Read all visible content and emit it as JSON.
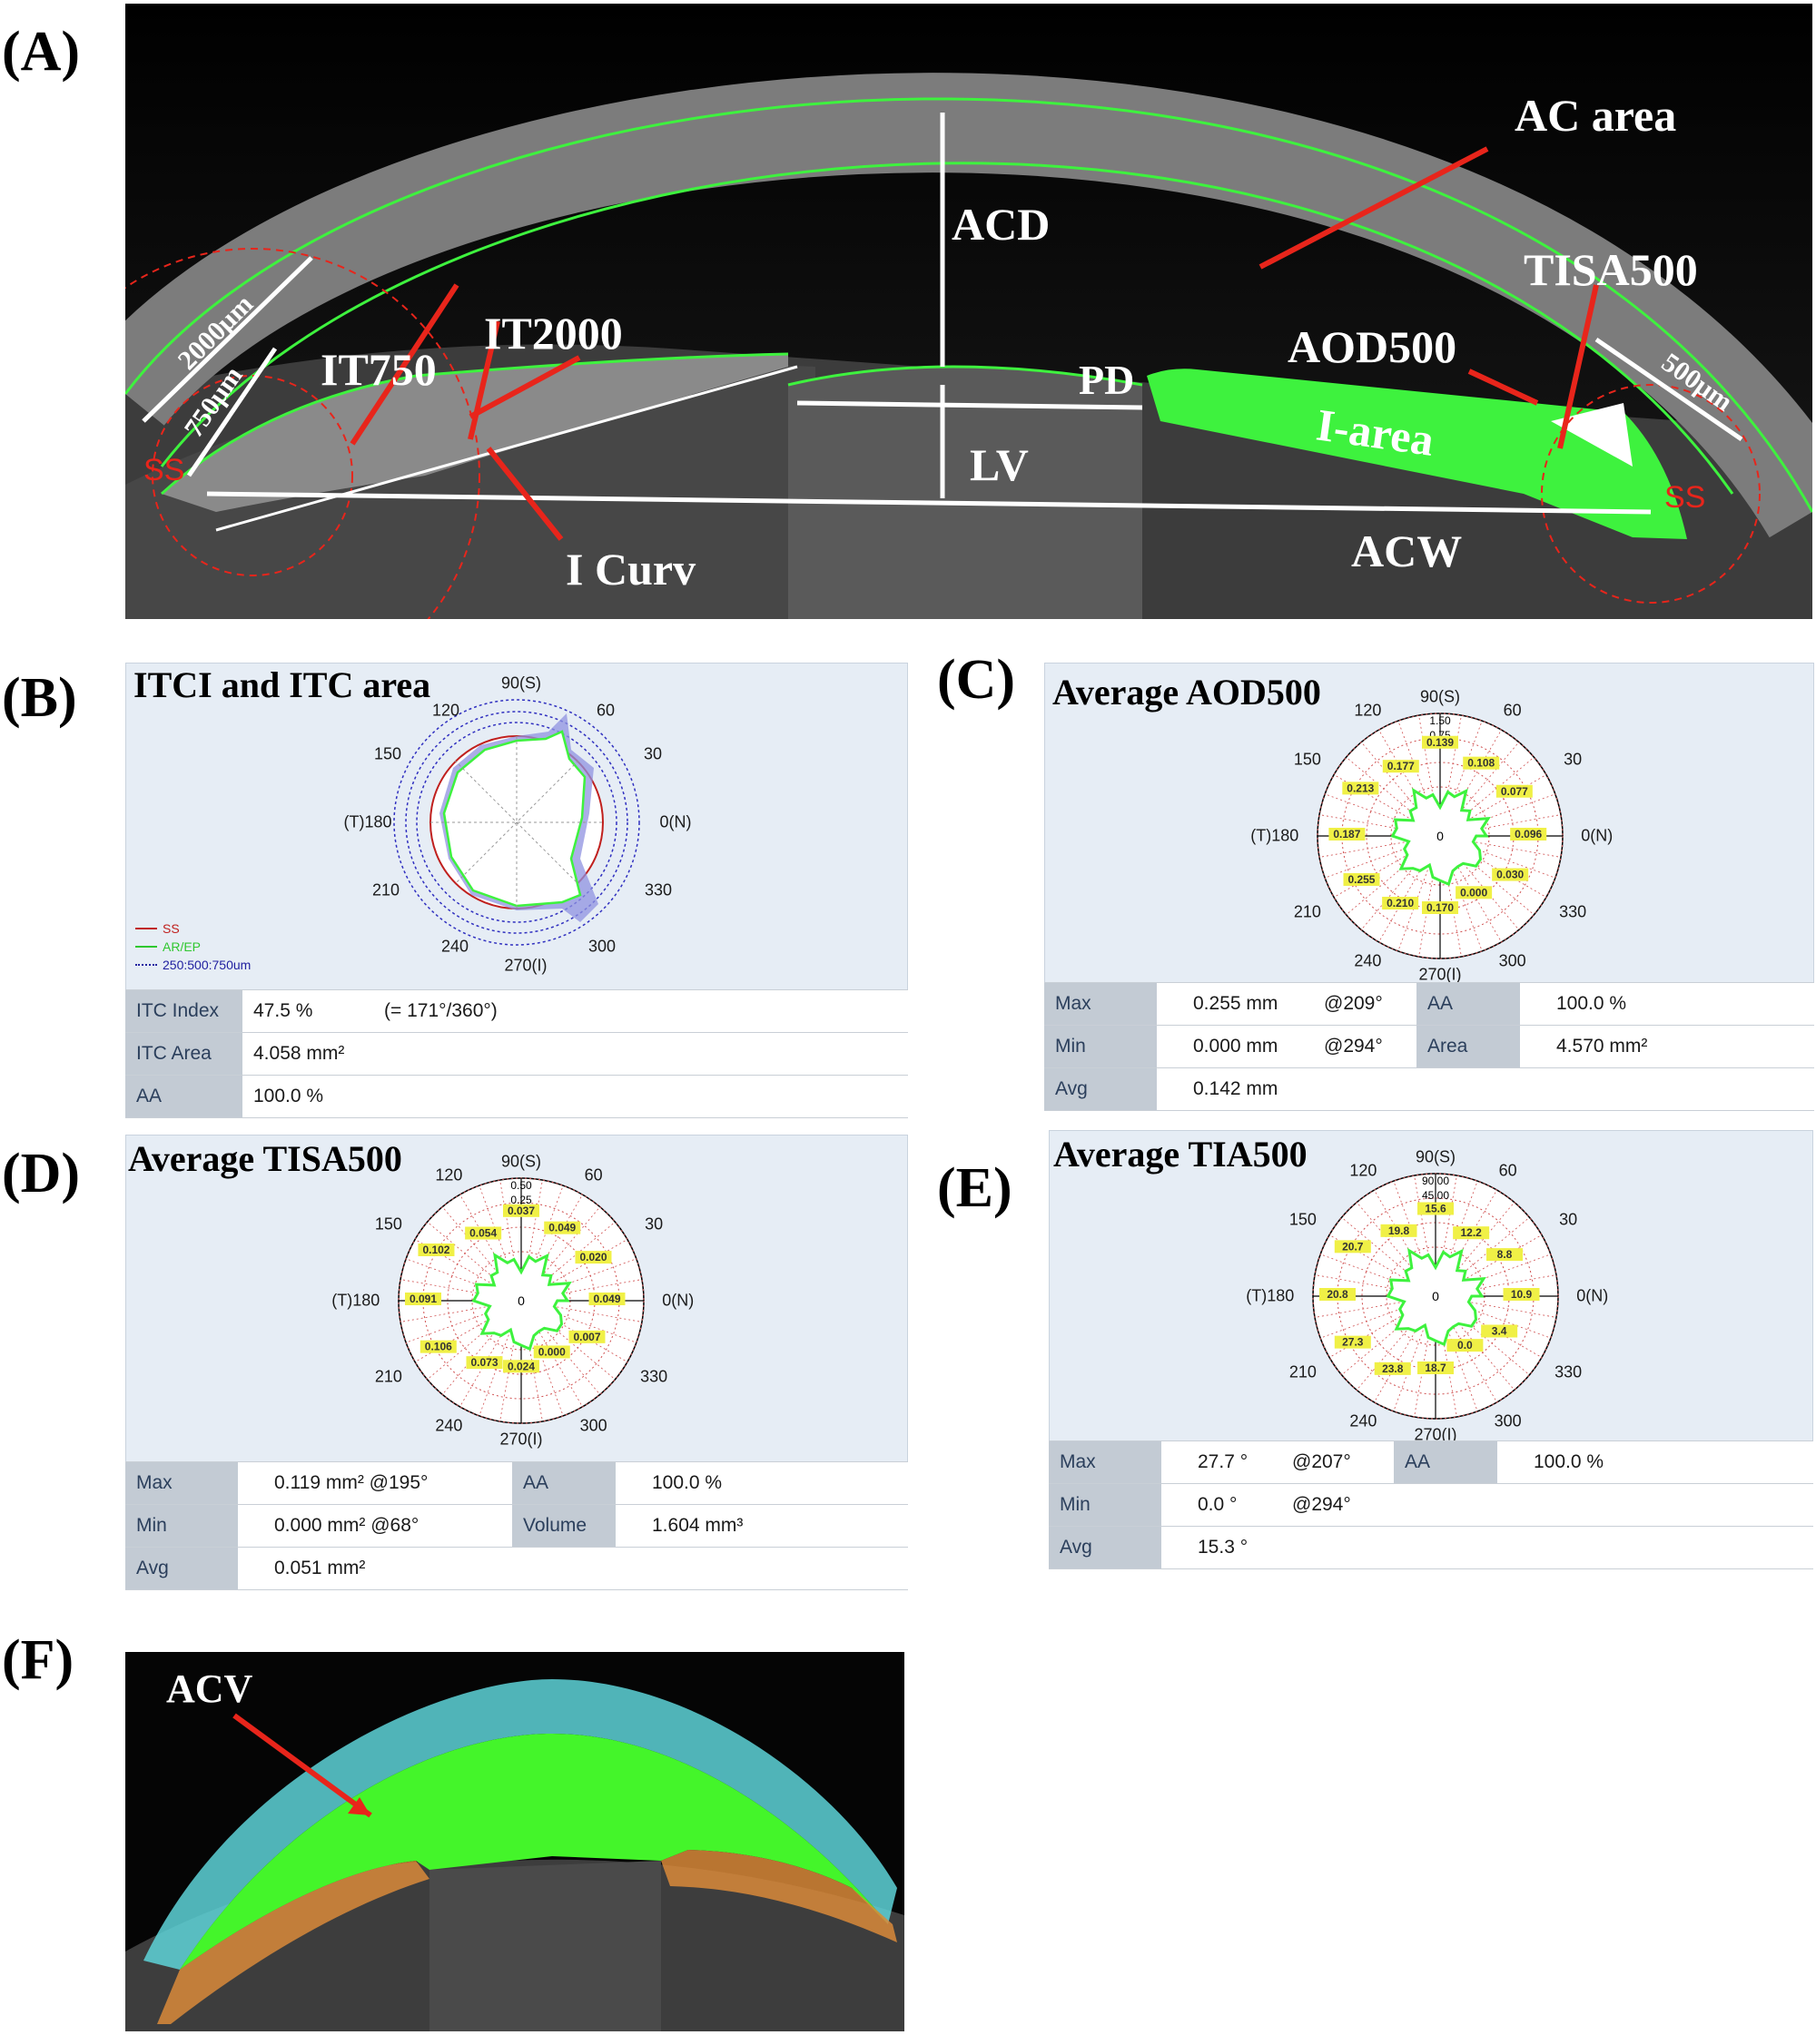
{
  "panels": {
    "a": "(A)",
    "b": "(B)",
    "c": "(C)",
    "d": "(D)",
    "e": "(E)",
    "f": "(F)"
  },
  "panel_a": {
    "labels": {
      "acd": "ACD",
      "ac_area": "AC area",
      "tisa500": "TISA500",
      "aod500": "AOD500",
      "pd": "PD",
      "i_area": "I-area",
      "lv": "LV",
      "acw": "ACW",
      "it2000": "IT2000",
      "it750": "IT750",
      "i_curv": "I Curv",
      "um2000": "2000μm",
      "um750": "750μm",
      "um500": "500μm",
      "ss": "SS"
    },
    "colors": {
      "segmentation": "#3ef23e",
      "arrow": "#e8251b",
      "measure": "#ffffff"
    }
  },
  "panel_b": {
    "title": "ITCI and ITC area",
    "angles": {
      "a90": "90(S)",
      "a120": "120",
      "a60": "60",
      "a150": "150",
      "a30": "30",
      "a180": "(T)180",
      "a0": "0(N)",
      "a210": "210",
      "a330": "330",
      "a240": "240",
      "a300": "300",
      "a270": "270(I)"
    },
    "legend": {
      "ss": "SS",
      "ar": "AR/EP",
      "ring": "250:500:750um"
    },
    "rows": [
      {
        "k": "ITC Index",
        "v": "47.5 %",
        "x": "(= 171°/360°)"
      },
      {
        "k": "ITC Area",
        "v": "4.058 mm²"
      },
      {
        "k": "AA",
        "v": "100.0 %"
      }
    ]
  },
  "panel_c": {
    "title": "Average AOD500",
    "angles": {
      "a90": "90(S)",
      "a120": "120",
      "a60": "60",
      "a150": "150",
      "a30": "30",
      "a180": "(T)180",
      "a0": "0(N)",
      "a210": "210",
      "a330": "330",
      "a240": "240",
      "a300": "300",
      "a270": "270(I)"
    },
    "center": "0",
    "scale": [
      "1.50",
      "0.75"
    ],
    "values": [
      {
        "t": "0.139",
        "a": 90,
        "r": 0.75
      },
      {
        "t": "0.108",
        "a": 60,
        "r": 0.67
      },
      {
        "t": "0.077",
        "a": 30,
        "r": 0.7
      },
      {
        "t": "0.096",
        "a": 0,
        "r": 0.72
      },
      {
        "t": "0.030",
        "a": 330,
        "r": 0.66
      },
      {
        "t": "0.000",
        "a": 300,
        "r": 0.55
      },
      {
        "t": "0.170",
        "a": 270,
        "r": 0.6
      },
      {
        "t": "0.210",
        "a": 240,
        "r": 0.65
      },
      {
        "t": "0.255",
        "a": 210,
        "r": 0.74
      },
      {
        "t": "0.187",
        "a": 180,
        "r": 0.76
      },
      {
        "t": "0.213",
        "a": 150,
        "r": 0.75
      },
      {
        "t": "0.177",
        "a": 120,
        "r": 0.64
      }
    ],
    "rows": [
      {
        "k": "Max",
        "v": "0.255 mm",
        "at": "@209°",
        "k2": "AA",
        "v2": "100.0 %"
      },
      {
        "k": "Min",
        "v": "0.000 mm",
        "at": "@294°",
        "k2": "Area",
        "v2": "4.570 mm²"
      },
      {
        "k": "Avg",
        "v": "0.142 mm"
      }
    ]
  },
  "panel_d": {
    "title": "Average TISA500",
    "angles": {
      "a90": "90(S)",
      "a120": "120",
      "a60": "60",
      "a150": "150",
      "a30": "30",
      "a180": "(T)180",
      "a0": "0(N)",
      "a210": "210",
      "a330": "330",
      "a240": "240",
      "a300": "300",
      "a270": "270(I)"
    },
    "center": "0",
    "scale": [
      "0.50",
      "0.25"
    ],
    "values": [
      {
        "t": "0.037",
        "a": 90,
        "r": 0.72
      },
      {
        "t": "0.049",
        "a": 60,
        "r": 0.67
      },
      {
        "t": "0.020",
        "a": 30,
        "r": 0.68
      },
      {
        "t": "0.049",
        "a": 0,
        "r": 0.7
      },
      {
        "t": "0.007",
        "a": 330,
        "r": 0.62
      },
      {
        "t": "0.000",
        "a": 300,
        "r": 0.5
      },
      {
        "t": "0.024",
        "a": 270,
        "r": 0.55
      },
      {
        "t": "0.073",
        "a": 240,
        "r": 0.6
      },
      {
        "t": "0.106",
        "a": 210,
        "r": 0.78
      },
      {
        "t": "0.091",
        "a": 180,
        "r": 0.8
      },
      {
        "t": "0.102",
        "a": 150,
        "r": 0.8
      },
      {
        "t": "0.054",
        "a": 120,
        "r": 0.62
      }
    ],
    "rows": [
      {
        "k": "Max",
        "v": "0.119 mm² @195°",
        "k2": "AA",
        "v2": "100.0 %"
      },
      {
        "k": "Min",
        "v": "0.000 mm² @68°",
        "k2": "Volume",
        "v2": "1.604 mm³"
      },
      {
        "k": "Avg",
        "v": "0.051 mm²"
      }
    ]
  },
  "panel_e": {
    "title": "Average TIA500",
    "angles": {
      "a90": "90(S)",
      "a120": "120",
      "a60": "60",
      "a150": "150",
      "a30": "30",
      "a180": "(T)180",
      "a0": "0(N)",
      "a210": "210",
      "a330": "330",
      "a240": "240",
      "a300": "300",
      "a270": "270(I)"
    },
    "center": "0",
    "scale": [
      "90.00",
      "45.00"
    ],
    "values": [
      {
        "t": "15.6",
        "a": 90,
        "r": 0.7
      },
      {
        "t": "12.2",
        "a": 60,
        "r": 0.58
      },
      {
        "t": "8.8",
        "a": 30,
        "r": 0.65
      },
      {
        "t": "10.9",
        "a": 0,
        "r": 0.7
      },
      {
        "t": "3.4",
        "a": 330,
        "r": 0.6
      },
      {
        "t": "0.0",
        "a": 300,
        "r": 0.48
      },
      {
        "t": "18.7",
        "a": 270,
        "r": 0.6
      },
      {
        "t": "23.8",
        "a": 240,
        "r": 0.7
      },
      {
        "t": "27.3",
        "a": 210,
        "r": 0.78
      },
      {
        "t": "20.8",
        "a": 180,
        "r": 0.8
      },
      {
        "t": "20.7",
        "a": 150,
        "r": 0.78
      },
      {
        "t": "19.8",
        "a": 120,
        "r": 0.6
      }
    ],
    "rows": [
      {
        "k": "Max",
        "v": "27.7 °",
        "at": "@207°",
        "k2": "AA",
        "v2": "100.0 %"
      },
      {
        "k": "Min",
        "v": "0.0 °",
        "at": "@294°"
      },
      {
        "k": "Avg",
        "v": "15.3 °"
      }
    ]
  },
  "panel_f": {
    "acv": "ACV",
    "colors": {
      "cornea": "#5ed3d8",
      "chamber": "#44f52a",
      "iris": "#d98a3a"
    }
  }
}
